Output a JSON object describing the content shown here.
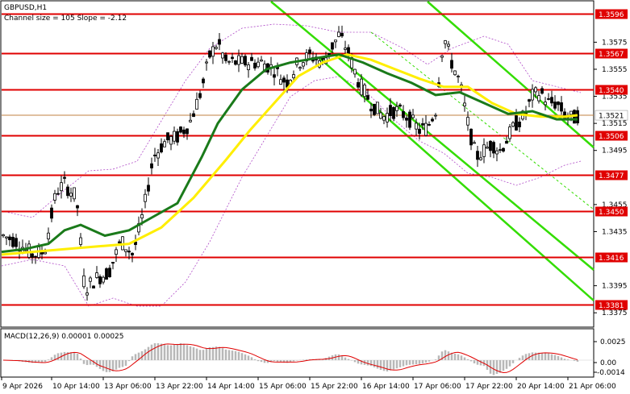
{
  "header": {
    "symbol": "GBPUSD,H1",
    "indicator": "Channel size = 105 Slope = -2.12"
  },
  "macd": {
    "label": "MACD(12,26,9) 0.00001 0.00025",
    "ticks": [
      "0.0025",
      "0.00",
      "-0.0014"
    ]
  },
  "chart_data": {
    "type": "candlestick",
    "symbol": "GBPUSD",
    "timeframe": "H1",
    "ylim": [
      1.3365,
      1.3605
    ],
    "y_ticks": [
      1.3575,
      1.3555,
      1.3535,
      1.3515,
      1.3495,
      1.3455,
      1.3435,
      1.3395,
      1.3375
    ],
    "levels": [
      1.3596,
      1.3567,
      1.354,
      1.3506,
      1.3477,
      1.345,
      1.3416,
      1.3381
    ],
    "current_price": 1.3521,
    "x_labels": [
      "9 Apr 2026",
      "10 Apr 14:00",
      "13 Apr 06:00",
      "13 Apr 22:00",
      "14 Apr 14:00",
      "15 Apr 06:00",
      "15 Apr 22:00",
      "16 Apr 14:00",
      "17 Apr 06:00",
      "17 Apr 22:00",
      "20 Apr 14:00",
      "21 Apr 06:00"
    ],
    "colors": {
      "level_line": "#e00000",
      "level_label_bg": "#e00000",
      "ma_fast": "#1a7a1a",
      "ma_slow": "#ffee00",
      "channel": "#33dd00",
      "envelope": "#b04cc8",
      "candle": "#000000",
      "macd_hist": "#b8b8b8",
      "macd_signal": "#e00000"
    }
  }
}
